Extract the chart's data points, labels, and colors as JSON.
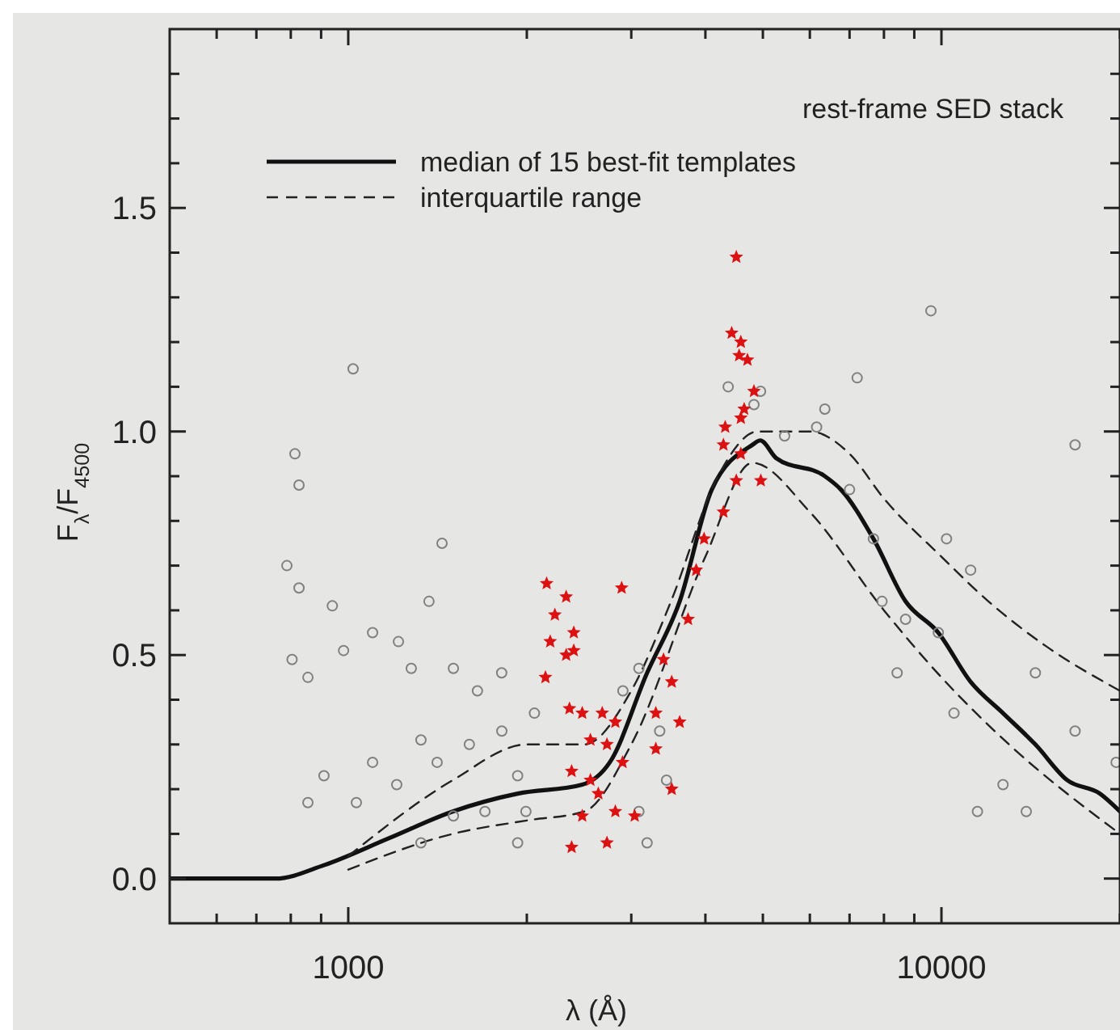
{
  "chart_data": {
    "type": "line",
    "xlabel": "λ (Å)",
    "ylabel": "F$_{λ}$/F$_{4500}$",
    "legend_title": "rest-frame SED stack",
    "legend": "top",
    "log": "x",
    "grid": false,
    "xlim": [
      500,
      20000
    ],
    "ylim": [
      -0.1,
      1.9
    ],
    "xticks": [
      {
        "value": 600,
        "label": null
      },
      {
        "value": 700,
        "label": null
      },
      {
        "value": 800,
        "label": null
      },
      {
        "value": 900,
        "label": null
      },
      1000,
      {
        "value": 2000,
        "label": null
      },
      {
        "value": 3000,
        "label": null
      },
      {
        "value": 4000,
        "label": null
      },
      {
        "value": 5000,
        "label": null
      },
      {
        "value": 6000,
        "label": null
      },
      {
        "value": 7000,
        "label": null
      },
      {
        "value": 8000,
        "label": null
      },
      {
        "value": 9000,
        "label": null
      },
      10000,
      {
        "value": 20000,
        "label": null
      }
    ],
    "yticks": [
      {
        "value": 0,
        "label": "0.0"
      },
      {
        "value": 0.1,
        "label": null
      },
      {
        "value": 0.2,
        "label": null
      },
      {
        "value": 0.3,
        "label": null
      },
      {
        "value": 0.4,
        "label": null
      },
      {
        "value": 0.5,
        "label": "0.5"
      },
      {
        "value": 0.6,
        "label": null
      },
      {
        "value": 0.7,
        "label": null
      },
      {
        "value": 0.8,
        "label": null
      },
      {
        "value": 0.9,
        "label": null
      },
      {
        "value": 1,
        "label": "1.0"
      },
      {
        "value": 1.1,
        "label": null
      },
      {
        "value": 1.2,
        "label": null
      },
      {
        "value": 1.3,
        "label": null
      },
      {
        "value": 1.4,
        "label": null
      },
      {
        "value": 1.5,
        "label": "1.5"
      },
      {
        "value": 1.6,
        "label": null
      },
      {
        "value": 1.7,
        "label": null
      },
      {
        "value": 1.8,
        "label": null
      }
    ],
    "series": [
      {
        "type": "scatter",
        "color": "#808080",
        "marker": "circle",
        "x": [
          813,
          826,
          788,
          826,
          1439,
          1019,
          940,
          804,
          855,
          982,
          1099,
          1215,
          1277,
          1368,
          1504,
          1651,
          1814,
          1326,
          1099,
          910,
          855,
          1032,
          1207,
          1412,
          1600,
          1815,
          1930,
          2060,
          1700,
          1504,
          1326,
          1993,
          1930,
          2904,
          3090,
          3350,
          3440,
          3190,
          3090,
          4830,
          4955,
          6160,
          6360,
          5440,
          7210,
          7000,
          7680,
          7940,
          8700,
          8420,
          9880,
          10500,
          11500,
          12700,
          14400,
          16800,
          16800,
          9600,
          13900,
          19700,
          10200,
          11200,
          4370
        ],
        "values": [
          0.95,
          0.88,
          0.7,
          0.65,
          0.75,
          1.14,
          0.61,
          0.49,
          0.45,
          0.51,
          0.55,
          0.53,
          0.47,
          0.62,
          0.47,
          0.42,
          0.46,
          0.31,
          0.26,
          0.23,
          0.17,
          0.17,
          0.21,
          0.26,
          0.3,
          0.33,
          0.23,
          0.37,
          0.15,
          0.14,
          0.08,
          0.15,
          0.08,
          0.42,
          0.47,
          0.33,
          0.22,
          0.08,
          0.15,
          1.06,
          1.09,
          1.01,
          1.05,
          0.99,
          1.12,
          0.87,
          0.76,
          0.62,
          0.58,
          0.46,
          0.55,
          0.37,
          0.15,
          0.21,
          0.46,
          0.33,
          0.97,
          1.27,
          0.15,
          0.26,
          0.76,
          0.69,
          1.1
        ]
      },
      {
        "type": "scatter",
        "color": "#dd1111",
        "marker": "star",
        "x": [
          2160,
          2330,
          2230,
          2400,
          2190,
          2890,
          2330,
          2400,
          2150,
          2360,
          2480,
          2680,
          2820,
          2560,
          2730,
          2900,
          2380,
          2560,
          2640,
          2820,
          2480,
          3040,
          2730,
          2380,
          3400,
          3510,
          3300,
          3620,
          3300,
          3510,
          3740,
          3860,
          3980,
          4290,
          4510,
          4590,
          4590,
          4650,
          4830,
          4710,
          4560,
          4590,
          4430,
          4510,
          4290,
          4960,
          4320
        ],
        "values": [
          0.66,
          0.63,
          0.59,
          0.55,
          0.53,
          0.65,
          0.5,
          0.51,
          0.45,
          0.38,
          0.37,
          0.37,
          0.35,
          0.31,
          0.3,
          0.26,
          0.24,
          0.22,
          0.19,
          0.15,
          0.14,
          0.14,
          0.08,
          0.07,
          0.49,
          0.44,
          0.37,
          0.35,
          0.29,
          0.2,
          0.58,
          0.69,
          0.76,
          0.82,
          0.89,
          0.95,
          1.03,
          1.05,
          1.09,
          1.16,
          1.17,
          1.2,
          1.22,
          1.39,
          0.97,
          0.89,
          1.01
        ]
      },
      {
        "name": "median of 15 best-fit templates",
        "color": "#111111",
        "line_style": "solid",
        "x": [
          500,
          754,
          910,
          1170,
          1500,
          1930,
          2480,
          2760,
          3190,
          3620,
          4100,
          4800,
          4950,
          5270,
          6360,
          6770,
          7680,
          8700,
          9880,
          11200,
          12700,
          14400,
          16300,
          18500,
          20000
        ],
        "values": [
          0,
          0,
          0.03,
          0.09,
          0.15,
          0.19,
          0.21,
          0.26,
          0.46,
          0.62,
          0.87,
          0.97,
          0.98,
          0.94,
          0.9,
          0.87,
          0.76,
          0.62,
          0.55,
          0.44,
          0.37,
          0.3,
          0.22,
          0.19,
          0.15
        ]
      },
      {
        "name": "interquartile range",
        "color": "#222222",
        "line_style": "dashed",
        "x": [
          1000,
          1500,
          2000,
          2500,
          3000,
          3500,
          4200,
          4900,
          6000,
          7000,
          8000,
          10000,
          12000,
          15000,
          20000
        ],
        "values": [
          0.05,
          0.22,
          0.3,
          0.3,
          0.42,
          0.62,
          0.9,
          1,
          1,
          0.95,
          0.85,
          0.72,
          0.62,
          0.52,
          0.42
        ]
      },
      {
        "color": "#222222",
        "line_style": "dashed",
        "x": [
          1000,
          1500,
          2000,
          2500,
          3000,
          4000,
          4800,
          6000,
          8000,
          10000,
          13000,
          20000
        ],
        "values": [
          0.02,
          0.1,
          0.13,
          0.15,
          0.3,
          0.72,
          0.93,
          0.82,
          0.6,
          0.45,
          0.3,
          0.1
        ]
      }
    ]
  }
}
